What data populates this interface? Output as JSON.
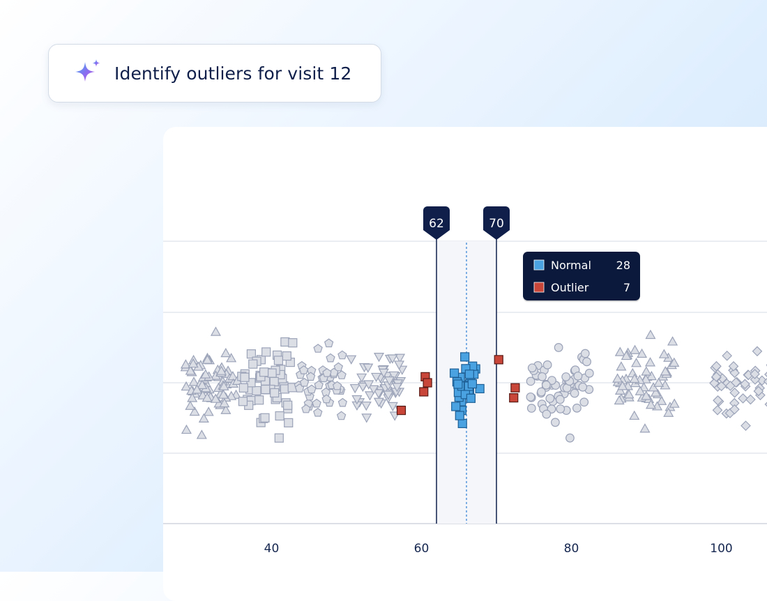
{
  "prompt": {
    "icon": "sparkle-icon",
    "text": "Identify outliers for visit 12"
  },
  "chart_data": {
    "type": "scatter",
    "title": "",
    "xlabel": "",
    "ylabel": "",
    "xlim": [
      26,
      108
    ],
    "x_ticks": [
      40,
      60,
      80,
      100
    ],
    "grid": "horizontal",
    "selection_range": {
      "min": 62,
      "max": 70,
      "min_label": "62",
      "max_label": "70",
      "midline": 66
    },
    "legend": [
      {
        "name": "Normal",
        "count": "28",
        "color": "#4aa3e0"
      },
      {
        "name": "Outlier",
        "count": "7",
        "color": "#c8453a"
      }
    ],
    "colors": {
      "background_points": "#dcdee6",
      "background_stroke": "#9ba3b8",
      "normal": "#4aa3e0",
      "outlier": "#c8453a",
      "range_line": "#0f1f4a"
    },
    "background_groups": [
      {
        "shape": "triangle",
        "center": 32,
        "spread": 3.5,
        "count": 75
      },
      {
        "shape": "square",
        "center": 39.5,
        "spread": 3.5,
        "count": 58
      },
      {
        "shape": "pentagon",
        "center": 46.5,
        "spread": 3.0,
        "count": 42
      },
      {
        "shape": "triangle-down",
        "center": 54,
        "spread": 3.5,
        "count": 55
      },
      {
        "shape": "circle",
        "center": 78.5,
        "spread": 4.0,
        "count": 62
      },
      {
        "shape": "triangle",
        "center": 90,
        "spread": 4.0,
        "count": 60
      },
      {
        "shape": "diamond",
        "center": 103,
        "spread": 4.0,
        "count": 50
      }
    ],
    "highlighted_groups": [
      {
        "status": "Normal",
        "shape": "square",
        "center": 66,
        "spread": 2.0,
        "count": 28
      }
    ],
    "outlier_points": [
      {
        "x": 60.5,
        "y": 0.12
      },
      {
        "x": 60.8,
        "y": 0.0
      },
      {
        "x": 60.3,
        "y": -0.18
      },
      {
        "x": 57.3,
        "y": -0.55
      },
      {
        "x": 70.3,
        "y": 0.46
      },
      {
        "x": 72.5,
        "y": -0.1
      },
      {
        "x": 72.3,
        "y": -0.3
      }
    ]
  }
}
